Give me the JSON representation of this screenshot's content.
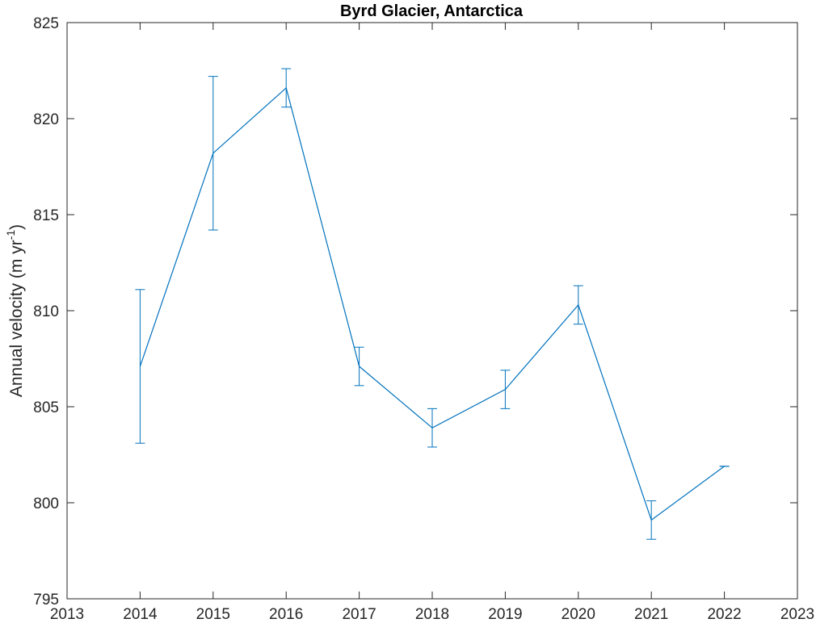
{
  "chart_data": {
    "type": "line",
    "title": "Byrd Glacier, Antarctica",
    "xlabel": "",
    "ylabel": "Annual velocity (m yr",
    "ylabel_superscript": "-1",
    "ylabel_suffix": ")",
    "xlim": [
      2013,
      2023
    ],
    "ylim": [
      795,
      825
    ],
    "xticks": [
      2013,
      2014,
      2015,
      2016,
      2017,
      2018,
      2019,
      2020,
      2021,
      2022,
      2023
    ],
    "yticks": [
      795,
      800,
      805,
      810,
      815,
      820,
      825
    ],
    "grid": false,
    "series": [
      {
        "x": [
          2014,
          2015,
          2016,
          2017,
          2018,
          2019,
          2020,
          2021,
          2022
        ],
        "values": [
          807.1,
          818.2,
          821.6,
          807.1,
          803.9,
          805.9,
          810.3,
          799.1,
          801.9
        ],
        "error": [
          4.0,
          4.0,
          1.0,
          1.0,
          1.0,
          1.0,
          1.0,
          1.0,
          0.0
        ]
      }
    ],
    "line_color": "#0072BD"
  }
}
